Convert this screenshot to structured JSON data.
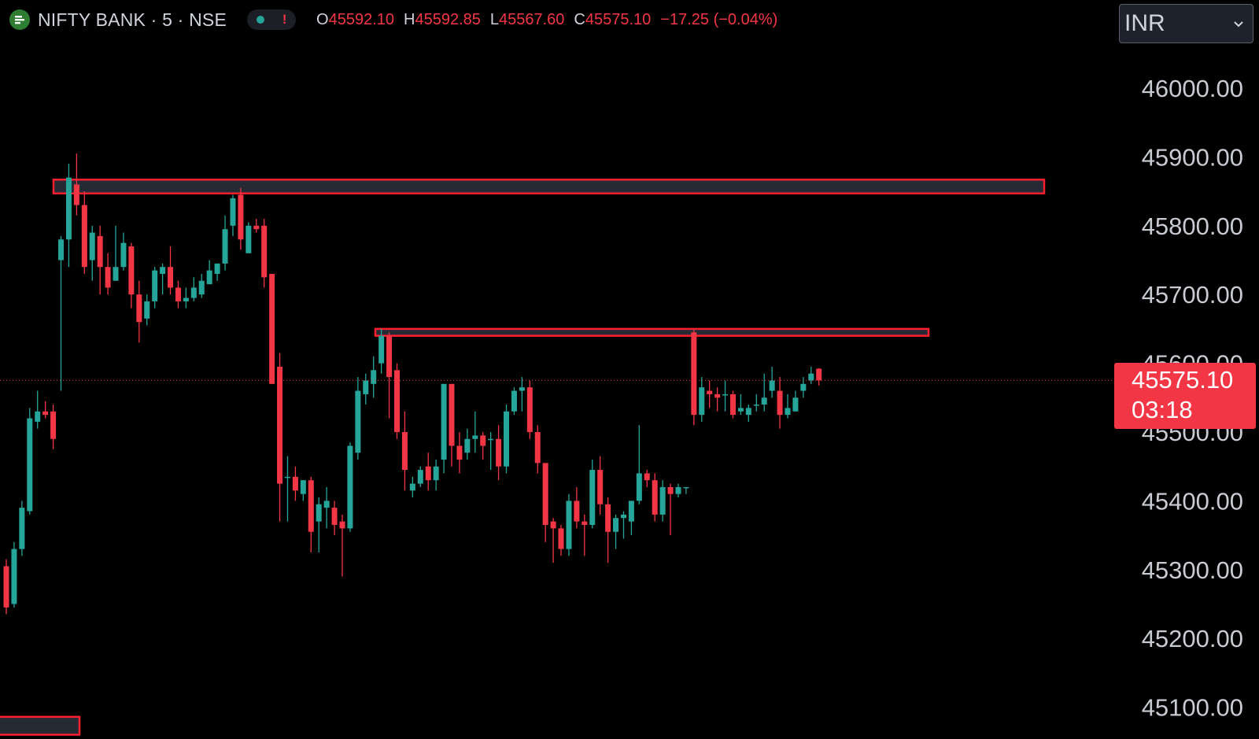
{
  "header": {
    "symbol": "NIFTY BANK · 5 · NSE",
    "market_status_alert": "!",
    "ohlc": [
      {
        "key": "O",
        "value": "45592.10"
      },
      {
        "key": "H",
        "value": "45592.85"
      },
      {
        "key": "L",
        "value": "45567.60"
      },
      {
        "key": "C",
        "value": "45575.10"
      }
    ],
    "change": "−17.25 (−0.04%)"
  },
  "currency_select": {
    "value": "INR"
  },
  "last_price_tag": {
    "price": "45575.10",
    "countdown": "03:18"
  },
  "colors": {
    "up": "#26a69a",
    "down": "#f23645",
    "zone_fill": "#262a35",
    "zone_border": "#ff1f2f",
    "background": "#000000"
  },
  "chart_data": {
    "type": "candlestick",
    "y_axis": {
      "ticks": [
        "46000.00",
        "45900.00",
        "45800.00",
        "45700.00",
        "45600.00",
        "45500.00",
        "45400.00",
        "45300.00",
        "45200.00",
        "45100.00"
      ],
      "range": [
        45040,
        46140
      ],
      "position": "right"
    },
    "last_price": 45575.1,
    "candles": [
      [
        45305,
        45245,
        45315,
        45235
      ],
      [
        45250,
        45330,
        45340,
        45245
      ],
      [
        45330,
        45390,
        45400,
        45320
      ],
      [
        45385,
        45520,
        45535,
        45380
      ],
      [
        45515,
        45530,
        45560,
        45505
      ],
      [
        45530,
        45525,
        45545,
        45520
      ],
      [
        45530,
        45490,
        45540,
        45475
      ],
      [
        45750,
        45780,
        45785,
        45560
      ],
      [
        45780,
        45870,
        45890,
        45740
      ],
      [
        45860,
        45830,
        45905,
        45815
      ],
      [
        45830,
        45740,
        45850,
        45730
      ],
      [
        45750,
        45790,
        45800,
        45720
      ],
      [
        45785,
        45740,
        45800,
        45700
      ],
      [
        45740,
        45710,
        45760,
        45700
      ],
      [
        45720,
        45740,
        45800,
        45720
      ],
      [
        45740,
        45775,
        45790,
        45735
      ],
      [
        45770,
        45700,
        45775,
        45680
      ],
      [
        45700,
        45660,
        45720,
        45630
      ],
      [
        45665,
        45690,
        45700,
        45655
      ],
      [
        45690,
        45735,
        45740,
        45680
      ],
      [
        45730,
        45740,
        45745,
        45700
      ],
      [
        45740,
        45710,
        45770,
        45700
      ],
      [
        45710,
        45690,
        45720,
        45680
      ],
      [
        45690,
        45695,
        45710,
        45680
      ],
      [
        45695,
        45710,
        45725,
        45690
      ],
      [
        45700,
        45720,
        45730,
        45695
      ],
      [
        45715,
        45735,
        45750,
        45715
      ],
      [
        45730,
        45745,
        45745,
        45720
      ],
      [
        45745,
        45795,
        45815,
        45735
      ],
      [
        45800,
        45840,
        45845,
        45785
      ],
      [
        45845,
        45780,
        45855,
        45765
      ],
      [
        45760,
        45800,
        45805,
        45760
      ],
      [
        45800,
        45795,
        45810,
        45790
      ],
      [
        45800,
        45725,
        45810,
        45710
      ],
      [
        45730,
        45570,
        45730,
        45570
      ],
      [
        45595,
        45425,
        45615,
        45370
      ],
      [
        45435,
        45435,
        45465,
        45370
      ],
      [
        45435,
        45415,
        45450,
        45400
      ],
      [
        45410,
        45430,
        45430,
        45400
      ],
      [
        45430,
        45355,
        45435,
        45325
      ],
      [
        45370,
        45395,
        45405,
        45325
      ],
      [
        45390,
        45400,
        45420,
        45360
      ],
      [
        45390,
        45365,
        45400,
        45350
      ],
      [
        45370,
        45360,
        45380,
        45290
      ],
      [
        45360,
        45480,
        45485,
        45355
      ],
      [
        45470,
        45560,
        45580,
        45460
      ],
      [
        45555,
        45575,
        45585,
        45540
      ],
      [
        45570,
        45590,
        45610,
        45550
      ],
      [
        45600,
        45640,
        45650,
        45585
      ],
      [
        45640,
        45580,
        45645,
        45520
      ],
      [
        45590,
        45500,
        45600,
        45490
      ],
      [
        45500,
        45445,
        45530,
        45415
      ],
      [
        45415,
        45425,
        45435,
        45405
      ],
      [
        45425,
        45445,
        45450,
        45420
      ],
      [
        45450,
        45430,
        45470,
        45415
      ],
      [
        45430,
        45450,
        45460,
        45415
      ],
      [
        45460,
        45570,
        45570,
        45440
      ],
      [
        45570,
        45480,
        45570,
        45450
      ],
      [
        45480,
        45460,
        45500,
        45440
      ],
      [
        45470,
        45490,
        45505,
        45460
      ],
      [
        45490,
        45495,
        45530,
        45470
      ],
      [
        45495,
        45480,
        45500,
        45460
      ],
      [
        45490,
        45490,
        45500,
        45445
      ],
      [
        45490,
        45450,
        45510,
        45430
      ],
      [
        45450,
        45530,
        45540,
        45440
      ],
      [
        45530,
        45560,
        45565,
        45525
      ],
      [
        45560,
        45565,
        45580,
        45530
      ],
      [
        45565,
        45500,
        45575,
        45490
      ],
      [
        45500,
        45455,
        45510,
        45440
      ],
      [
        45455,
        45365,
        45455,
        45340
      ],
      [
        45370,
        45360,
        45375,
        45310
      ],
      [
        45360,
        45330,
        45365,
        45320
      ],
      [
        45330,
        45400,
        45410,
        45320
      ],
      [
        45400,
        45370,
        45420,
        45360
      ],
      [
        45370,
        45365,
        45380,
        45320
      ],
      [
        45365,
        45445,
        45460,
        45360
      ],
      [
        45445,
        45395,
        45465,
        45380
      ],
      [
        45395,
        45355,
        45405,
        45310
      ],
      [
        45355,
        45375,
        45380,
        45330
      ],
      [
        45375,
        45380,
        45385,
        45345
      ],
      [
        45370,
        45400,
        45400,
        45350
      ],
      [
        45400,
        45440,
        45510,
        45395
      ],
      [
        45440,
        45430,
        45445,
        45420
      ],
      [
        45430,
        45380,
        45440,
        45370
      ],
      [
        45380,
        45420,
        45430,
        45370
      ],
      [
        45420,
        45410,
        45425,
        45350
      ],
      [
        45410,
        45420,
        45425,
        45405
      ],
      [
        45420,
        45420,
        45420,
        45410
      ],
      [
        45645,
        45525,
        45650,
        45510
      ],
      [
        45525,
        45565,
        45580,
        45515
      ],
      [
        45560,
        45555,
        45575,
        45535
      ],
      [
        45555,
        45550,
        45565,
        45530
      ],
      [
        45555,
        45555,
        45575,
        45530
      ],
      [
        45555,
        45525,
        45560,
        45520
      ],
      [
        45530,
        45535,
        45555,
        45525
      ],
      [
        45525,
        45535,
        45540,
        45515
      ],
      [
        45540,
        45540,
        45555,
        45530
      ],
      [
        45540,
        45550,
        45585,
        45530
      ],
      [
        45560,
        45575,
        45595,
        45550
      ],
      [
        45560,
        45525,
        45580,
        45505
      ],
      [
        45525,
        45535,
        45555,
        45520
      ],
      [
        45530,
        45550,
        45560,
        45530
      ],
      [
        45560,
        45570,
        45580,
        45550
      ],
      [
        45575,
        45585,
        45595,
        45570
      ],
      [
        45592.1,
        45575.1,
        45592.85,
        45567.6
      ]
    ],
    "zones": [
      {
        "from": 45847,
        "to": 45867,
        "span": "long"
      },
      {
        "from": 45640,
        "to": 45650,
        "span": "mid"
      },
      {
        "from": 45060,
        "to": 45086,
        "span": "short"
      }
    ]
  }
}
